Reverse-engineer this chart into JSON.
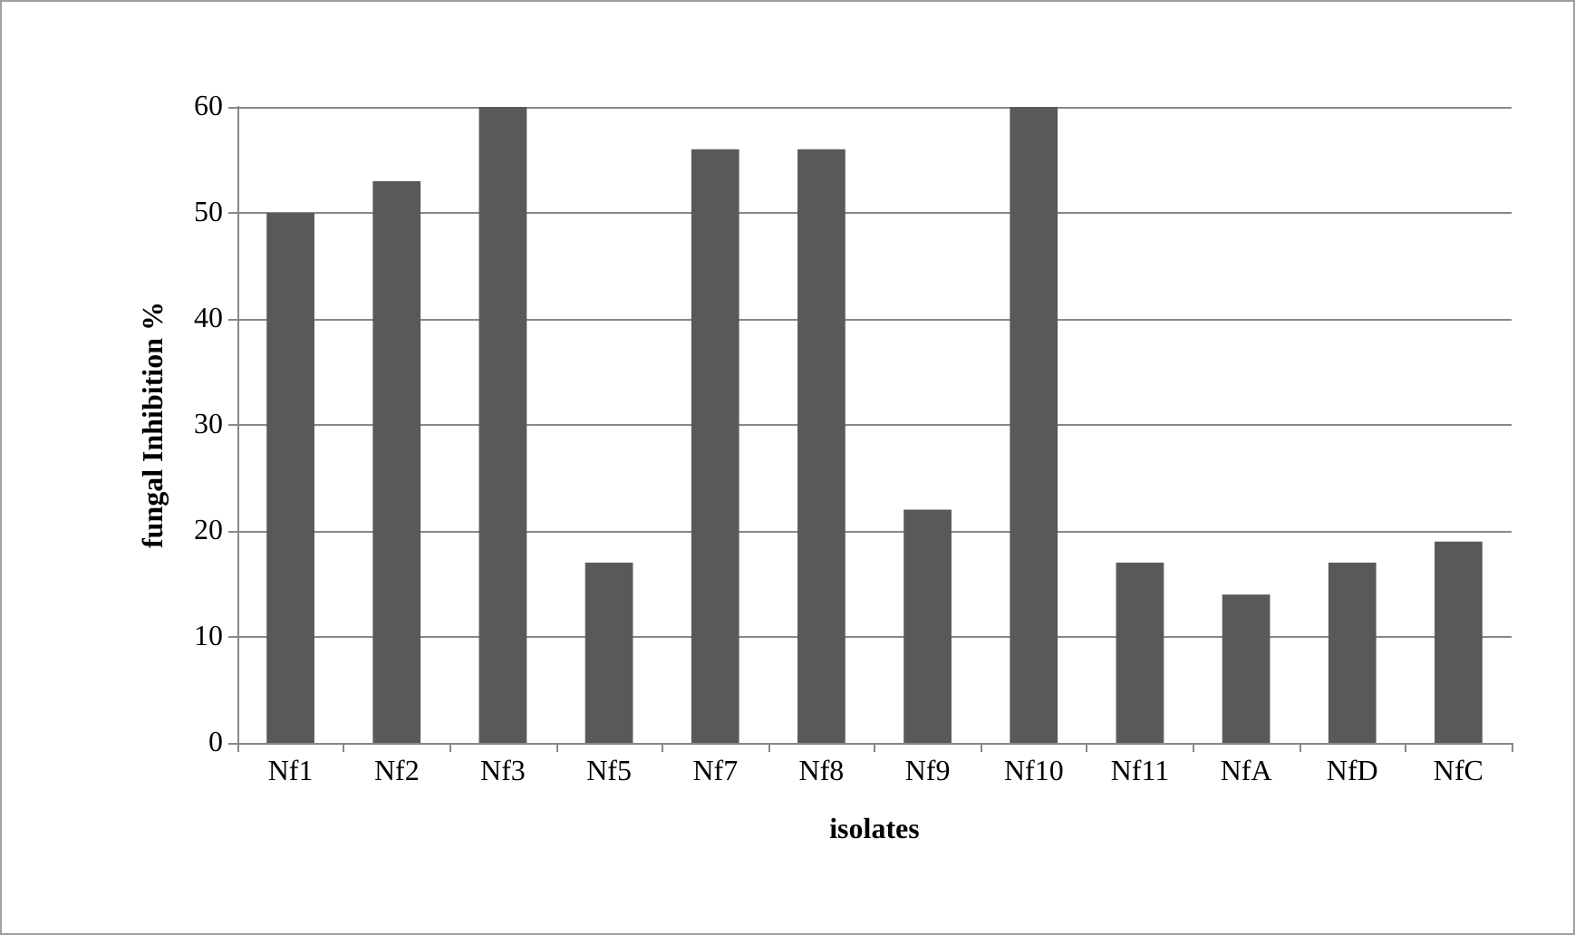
{
  "chart_data": {
    "type": "bar",
    "xlabel": "isolates",
    "ylabel": "fungal Inhibition %",
    "categories": [
      "Nf1",
      "Nf2",
      "Nf3",
      "Nf5",
      "Nf7",
      "Nf8",
      "Nf9",
      "Nf10",
      "Nf11",
      "NfA",
      "NfD",
      "NfC"
    ],
    "values": [
      50,
      53,
      60,
      17,
      56,
      56,
      22,
      60,
      17,
      14,
      17,
      19
    ],
    "color": "#595959",
    "ylim": [
      0,
      60
    ],
    "yticks": [
      0,
      10,
      20,
      30,
      40,
      50,
      60
    ],
    "grid": "y"
  }
}
